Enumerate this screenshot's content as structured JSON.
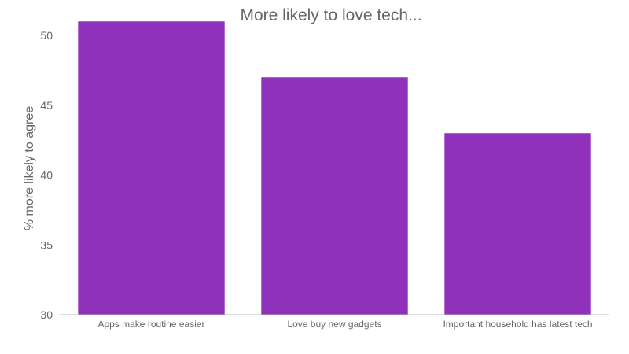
{
  "chart_data": {
    "type": "bar",
    "title": "More likely to love tech...",
    "xlabel": "",
    "ylabel": "% more likely to agree",
    "ylim": [
      30,
      52
    ],
    "yticks": [
      30,
      35,
      40,
      45,
      50
    ],
    "categories": [
      "Apps make routine easier",
      "Love buy new gadgets",
      "Important household has latest tech"
    ],
    "values": [
      51,
      47,
      43
    ],
    "grid": false,
    "legend": "none",
    "bar_color": "#9031bb"
  }
}
